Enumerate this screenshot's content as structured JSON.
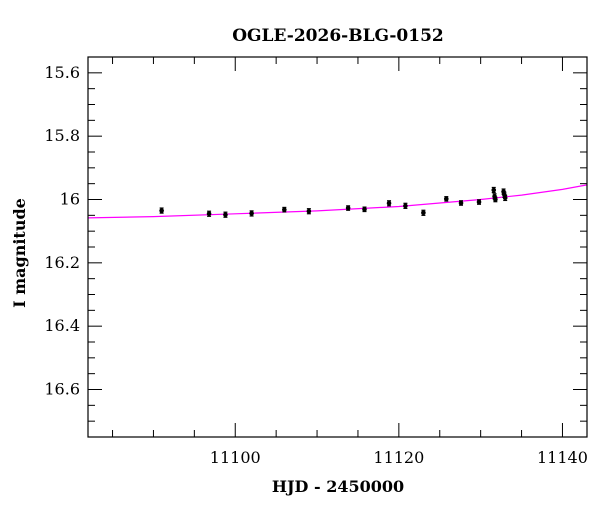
{
  "chart_data": {
    "type": "scatter",
    "title": "OGLE-2026-BLG-0152",
    "xlabel": "HJD - 2450000",
    "ylabel": "I magnitude",
    "xlim": [
      11082,
      11143
    ],
    "ylim": [
      16.75,
      15.55
    ],
    "y_inverted": true,
    "x_major_ticks": [
      11100,
      11120,
      11140
    ],
    "y_major_ticks": [
      15.6,
      15.8,
      16,
      16.2,
      16.4,
      16.6
    ],
    "y_tick_labels": [
      "15.6",
      "15.8",
      "16",
      "16.2",
      "16.4",
      "16.6"
    ],
    "x_tick_labels": [
      "11100",
      "11120",
      "11140"
    ],
    "grid": false,
    "series": [
      {
        "type": "scatter",
        "color": "#000000",
        "points": [
          {
            "x": 11091.0,
            "y": 16.035,
            "err": 0.008
          },
          {
            "x": 11096.8,
            "y": 16.045,
            "err": 0.008
          },
          {
            "x": 11098.8,
            "y": 16.048,
            "err": 0.008
          },
          {
            "x": 11102.0,
            "y": 16.044,
            "err": 0.008
          },
          {
            "x": 11106.0,
            "y": 16.032,
            "err": 0.007
          },
          {
            "x": 11109.0,
            "y": 16.037,
            "err": 0.008
          },
          {
            "x": 11113.8,
            "y": 16.027,
            "err": 0.007
          },
          {
            "x": 11115.8,
            "y": 16.031,
            "err": 0.007
          },
          {
            "x": 11118.8,
            "y": 16.012,
            "err": 0.008
          },
          {
            "x": 11120.8,
            "y": 16.02,
            "err": 0.008
          },
          {
            "x": 11123.0,
            "y": 16.042,
            "err": 0.008
          },
          {
            "x": 11125.8,
            "y": 15.998,
            "err": 0.007
          },
          {
            "x": 11127.6,
            "y": 16.011,
            "err": 0.007
          },
          {
            "x": 11129.8,
            "y": 16.008,
            "err": 0.007
          },
          {
            "x": 11131.6,
            "y": 15.97,
            "err": 0.008
          },
          {
            "x": 11131.7,
            "y": 15.99,
            "err": 0.008
          },
          {
            "x": 11131.8,
            "y": 16.0,
            "err": 0.007
          },
          {
            "x": 11132.8,
            "y": 15.975,
            "err": 0.008
          },
          {
            "x": 11132.9,
            "y": 15.985,
            "err": 0.008
          },
          {
            "x": 11133.0,
            "y": 15.995,
            "err": 0.008
          }
        ]
      },
      {
        "type": "line",
        "color": "#ff00ff",
        "x": [
          11082,
          11090,
          11100,
          11110,
          11120,
          11130,
          11135,
          11140,
          11143
        ],
        "y": [
          16.058,
          16.054,
          16.045,
          16.036,
          16.022,
          16.0,
          15.986,
          15.968,
          15.954
        ]
      }
    ]
  }
}
